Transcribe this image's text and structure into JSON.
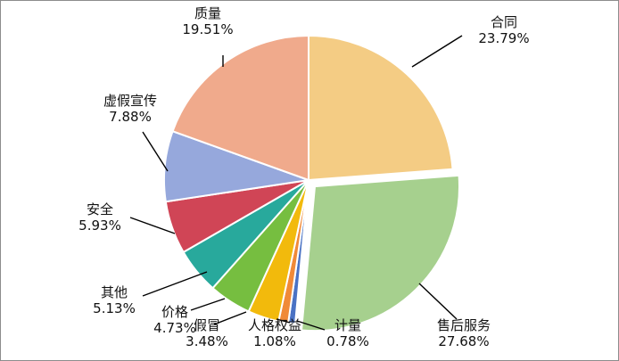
{
  "chart_data": {
    "type": "pie",
    "title": "",
    "slices": [
      {
        "label": "合同",
        "value": 23.79,
        "value_label": "23.79%",
        "color": "#F4CC84"
      },
      {
        "label": "售后服务",
        "value": 27.68,
        "value_label": "27.68%",
        "color": "#A6D08E",
        "exploded": true
      },
      {
        "label": "计量",
        "value": 0.78,
        "value_label": "0.78%",
        "color": "#4A72C4"
      },
      {
        "label": "人格权益",
        "value": 1.08,
        "value_label": "1.08%",
        "color": "#F08A38"
      },
      {
        "label": "假冒",
        "value": 3.48,
        "value_label": "3.48%",
        "color": "#F2BA0C"
      },
      {
        "label": "价格",
        "value": 4.73,
        "value_label": "4.73%",
        "color": "#76BE40"
      },
      {
        "label": "其他",
        "value": 5.13,
        "value_label": "5.13%",
        "color": "#28A99C"
      },
      {
        "label": "安全",
        "value": 5.93,
        "value_label": "5.93%",
        "color": "#D04556"
      },
      {
        "label": "虚假宣传",
        "value": 7.88,
        "value_label": "7.88%",
        "color": "#96A8DC"
      },
      {
        "label": "质量",
        "value": 19.51,
        "value_label": "19.51%",
        "color": "#F0AA8C"
      }
    ]
  }
}
